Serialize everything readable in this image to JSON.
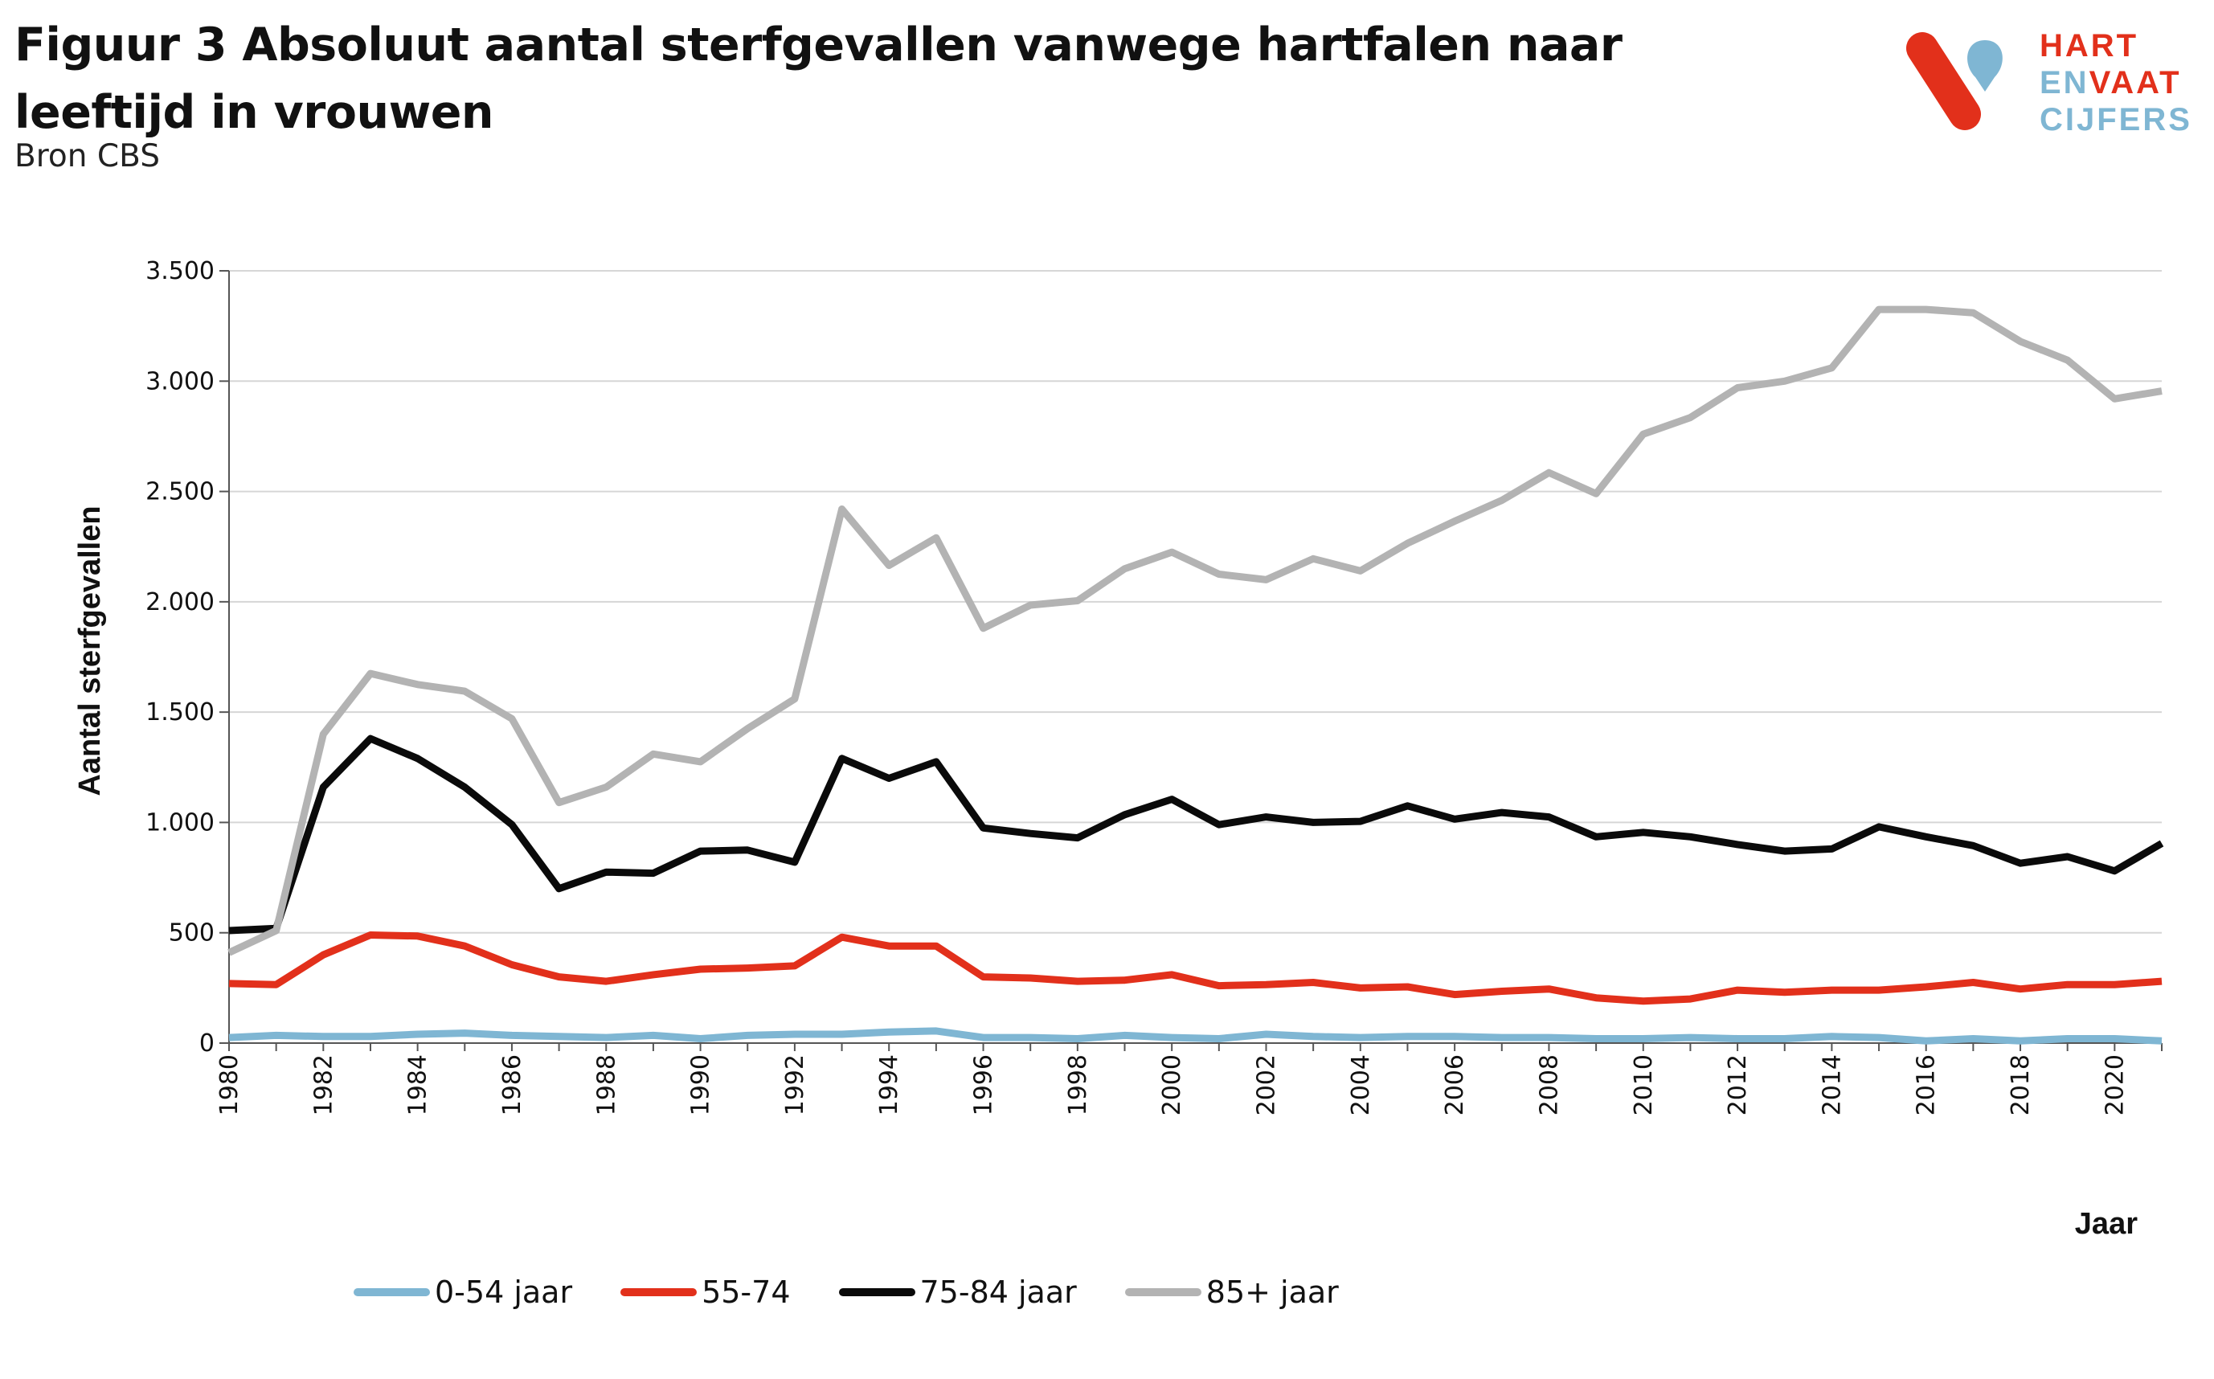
{
  "header": {
    "title": "Figuur 3 Absoluut aantal sterfgevallen vanwege hartfalen naar leeftijd in vrouwen",
    "subtitle": "Bron CBS"
  },
  "logo": {
    "line1": "HART",
    "line2a": "EN",
    "line2b": "VAAT",
    "line3": "CIJFERS",
    "colors": {
      "red": "#e2301b",
      "blue": "#7fb6d3"
    }
  },
  "chart_data": {
    "type": "line",
    "title": "Figuur 3 Absoluut aantal sterfgevallen vanwege hartfalen naar leeftijd in vrouwen",
    "xlabel": "Jaar",
    "ylabel": "Aantal sterfgevallen",
    "ylim": [
      0,
      3500
    ],
    "yticks": [
      0,
      500,
      1000,
      1500,
      2000,
      2500,
      3000,
      3500
    ],
    "ytick_labels": [
      "0",
      "500",
      "1.000",
      "1.500",
      "2.000",
      "2.500",
      "3.000",
      "3.500"
    ],
    "xlim": [
      1980,
      2021
    ],
    "xticks": [
      1980,
      1982,
      1984,
      1986,
      1988,
      1990,
      1992,
      1994,
      1996,
      1998,
      2000,
      2002,
      2004,
      2006,
      2008,
      2010,
      2012,
      2014,
      2016,
      2018,
      2020
    ],
    "grid": true,
    "legend_position": "bottom",
    "x": [
      1980,
      1981,
      1982,
      1983,
      1984,
      1985,
      1986,
      1987,
      1988,
      1989,
      1990,
      1991,
      1992,
      1993,
      1994,
      1995,
      1996,
      1997,
      1998,
      1999,
      2000,
      2001,
      2002,
      2003,
      2004,
      2005,
      2006,
      2007,
      2008,
      2009,
      2010,
      2011,
      2012,
      2013,
      2014,
      2015,
      2016,
      2017,
      2018,
      2019,
      2020,
      2021
    ],
    "series": [
      {
        "name": "0-54 jaar",
        "color": "#7fb6d3",
        "values": [
          25,
          35,
          30,
          30,
          40,
          45,
          35,
          30,
          25,
          35,
          20,
          35,
          40,
          40,
          50,
          55,
          25,
          25,
          20,
          35,
          25,
          20,
          40,
          30,
          25,
          30,
          30,
          25,
          25,
          20,
          20,
          25,
          20,
          20,
          30,
          25,
          10,
          20,
          10,
          20,
          20,
          10
        ]
      },
      {
        "name": "55-74",
        "color": "#e2301b",
        "values": [
          270,
          265,
          400,
          490,
          485,
          440,
          355,
          300,
          280,
          310,
          335,
          340,
          350,
          480,
          440,
          440,
          300,
          295,
          280,
          285,
          310,
          260,
          265,
          275,
          250,
          255,
          220,
          235,
          245,
          205,
          190,
          200,
          240,
          230,
          240,
          240,
          255,
          275,
          245,
          265,
          265,
          280
        ]
      },
      {
        "name": "75-84 jaar",
        "color": "#0a0a0a",
        "values": [
          510,
          520,
          1160,
          1380,
          1290,
          1160,
          990,
          700,
          775,
          770,
          870,
          875,
          820,
          1290,
          1200,
          1275,
          975,
          950,
          930,
          1035,
          1105,
          990,
          1025,
          1000,
          1005,
          1075,
          1015,
          1045,
          1025,
          935,
          955,
          935,
          900,
          870,
          880,
          980,
          935,
          895,
          815,
          845,
          780,
          905
        ]
      },
      {
        "name": "85+ jaar",
        "color": "#b3b3b3",
        "values": [
          410,
          510,
          1400,
          1675,
          1625,
          1595,
          1470,
          1090,
          1160,
          1310,
          1275,
          1425,
          1560,
          2420,
          2165,
          2290,
          1880,
          1985,
          2005,
          2150,
          2225,
          2125,
          2100,
          2195,
          2140,
          2265,
          2365,
          2460,
          2585,
          2490,
          2760,
          2835,
          2970,
          3000,
          3060,
          3325,
          3325,
          3310,
          3180,
          3095,
          2920,
          2955
        ]
      }
    ]
  }
}
